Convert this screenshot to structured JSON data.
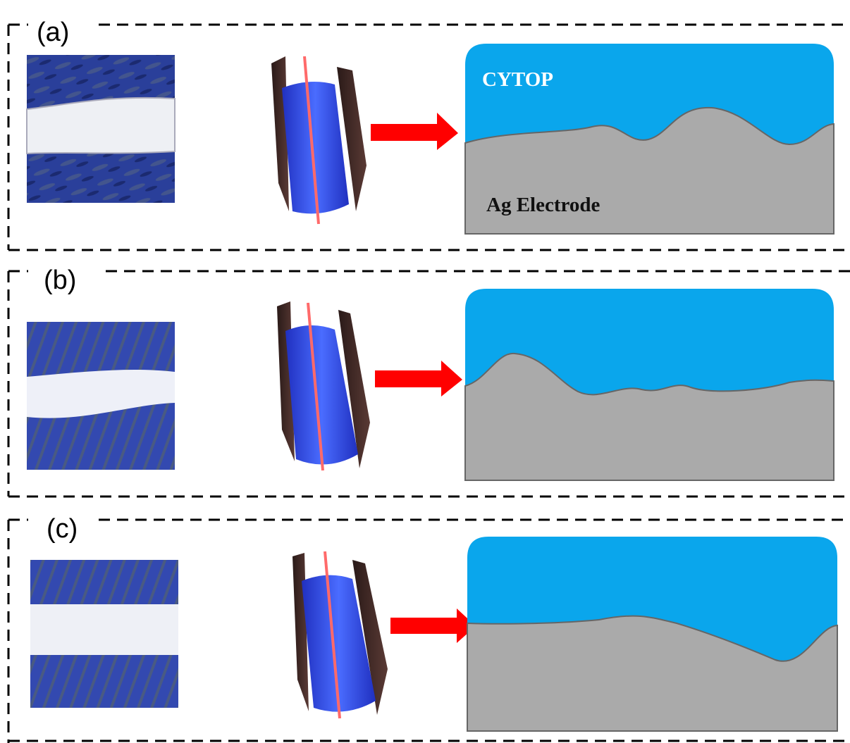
{
  "panels": [
    {
      "label": "(a)",
      "layer_top": "CYTOP",
      "layer_bottom": "Ag Electrode"
    },
    {
      "label": "(b)"
    },
    {
      "label": "(c)"
    }
  ]
}
